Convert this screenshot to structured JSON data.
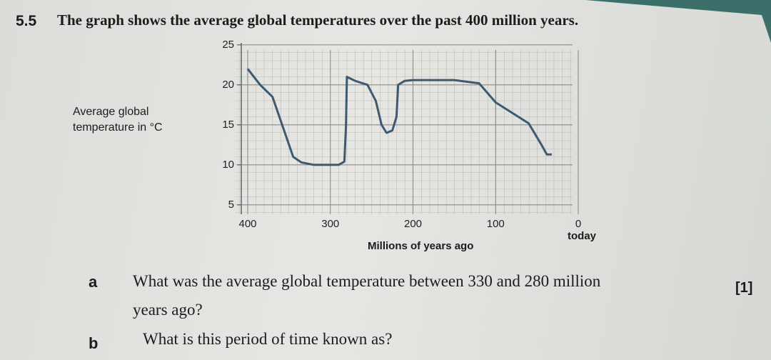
{
  "question": {
    "number": "5.5",
    "text": "The graph shows the average global temperatures over the past 400 million years."
  },
  "chart_data": {
    "type": "line",
    "y_label": [
      "Average global",
      "temperature in °C"
    ],
    "x_label": "Millions of years ago",
    "x_end_label": "today",
    "x": [
      400,
      385,
      370,
      355,
      345,
      335,
      320,
      300,
      290,
      283,
      281,
      280,
      270,
      255,
      245,
      238,
      232,
      225,
      220,
      218,
      210,
      200,
      150,
      120,
      100,
      80,
      60,
      45,
      38,
      32
    ],
    "values": [
      22,
      20,
      18.5,
      14,
      11,
      10.3,
      10,
      10,
      10,
      10.4,
      15,
      21,
      20.5,
      20,
      18,
      15,
      14,
      14.3,
      16,
      20,
      20.5,
      20.6,
      20.6,
      20.2,
      17.8,
      16.5,
      15.2,
      12.6,
      11.3,
      11.3
    ],
    "color": "#3e5a70",
    "xlim": [
      400,
      0
    ],
    "xticks": [
      400,
      300,
      200,
      100,
      0
    ],
    "ylim": [
      4,
      25
    ],
    "yticks": [
      5,
      10,
      15,
      20,
      25
    ],
    "grid": true
  },
  "part_a": {
    "letter": "a",
    "lines": [
      "What was the average global temperature between 330 and 280 million",
      "years ago?"
    ],
    "marks": "[1]"
  },
  "part_b": {
    "letter": "b",
    "text": "What is this period of time known as?"
  }
}
